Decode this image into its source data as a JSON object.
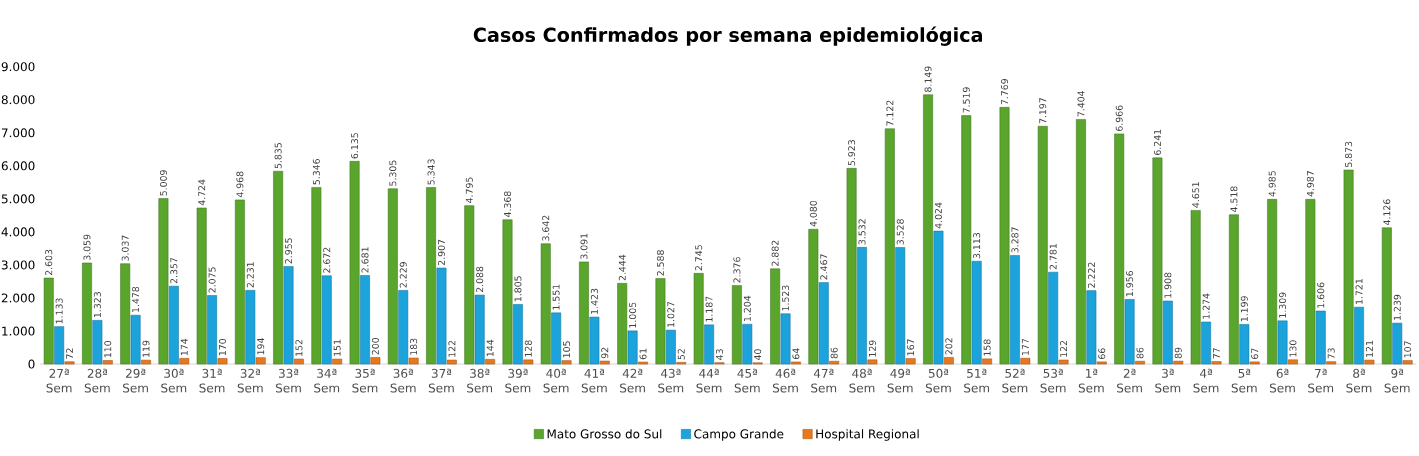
{
  "chart_data": {
    "type": "bar",
    "title": "Casos Confirmados por semana epidemiológica",
    "categories": [
      "27ª Sem",
      "28ª Sem",
      "29ª Sem",
      "30ª Sem",
      "31ª Sem",
      "32ª Sem",
      "33ª Sem",
      "34ª Sem",
      "35ª Sem",
      "36ª Sem",
      "37ª Sem",
      "38ª Sem",
      "39ª Sem",
      "40ª Sem",
      "41ª Sem",
      "42ª Sem",
      "43ª Sem",
      "44ª Sem",
      "45ª Sem",
      "46ª Sem",
      "47ª Sem",
      "48ª Sem",
      "49ª Sem",
      "50ª Sem",
      "51ª Sem",
      "52ª Sem",
      "53ª Sem",
      "1ª Sem",
      "2ª Sem",
      "3ª Sem",
      "4ª Sem",
      "5ª Sem",
      "6ª Sem",
      "7ª Sem",
      "8ª Sem",
      "9ª Sem"
    ],
    "series": [
      {
        "name": "Mato Grosso do Sul",
        "color": "#5aa52c",
        "values": [
          2603,
          3059,
          3037,
          5009,
          4724,
          4968,
          5835,
          5346,
          6135,
          5305,
          5343,
          4795,
          4368,
          3642,
          3091,
          2444,
          2588,
          2745,
          2376,
          2882,
          4080,
          5923,
          7122,
          8149,
          7519,
          7769,
          7197,
          7404,
          6966,
          6241,
          4651,
          4518,
          4985,
          4987,
          5873,
          4126
        ],
        "value_labels": [
          "2.603",
          "3.059",
          "3.037",
          "5.009",
          "4.724",
          "4.968",
          "5.835",
          "5.346",
          "6.135",
          "5.305",
          "5.343",
          "4.795",
          "4.368",
          "3.642",
          "3.091",
          "2.444",
          "2.588",
          "2.745",
          "2.376",
          "2.882",
          "4.080",
          "5.923",
          "7.122",
          "8.149",
          "7.519",
          "7.769",
          "7.197",
          "7.404",
          "6.966",
          "6.241",
          "4.651",
          "4.518",
          "4.985",
          "4.987",
          "5.873",
          "4.126"
        ]
      },
      {
        "name": "Campo Grande",
        "color": "#1ca3dc",
        "values": [
          1133,
          1323,
          1478,
          2357,
          2075,
          2231,
          2955,
          2672,
          2681,
          2229,
          2907,
          2088,
          1805,
          1551,
          1423,
          1005,
          1027,
          1187,
          1204,
          1523,
          2467,
          3532,
          3528,
          4024,
          3113,
          3287,
          2781,
          2222,
          1956,
          1908,
          1274,
          1199,
          1309,
          1606,
          1721,
          1239
        ],
        "value_labels": [
          "1.133",
          "1.323",
          "1.478",
          "2.357",
          "2.075",
          "2.231",
          "2.955",
          "2.672",
          "2.681",
          "2.229",
          "2.907",
          "2.088",
          "1.805",
          "1.551",
          "1.423",
          "1.005",
          "1.027",
          "1.187",
          "1.204",
          "1.523",
          "2.467",
          "3.532",
          "3.528",
          "4.024",
          "3.113",
          "3.287",
          "2.781",
          "2.222",
          "1.956",
          "1.908",
          "1.274",
          "1.199",
          "1.309",
          "1.606",
          "1.721",
          "1.239"
        ]
      },
      {
        "name": "Hospital Regional",
        "color": "#e8781e",
        "values": [
          72,
          110,
          119,
          174,
          170,
          194,
          152,
          151,
          200,
          183,
          122,
          144,
          128,
          105,
          92,
          61,
          52,
          43,
          40,
          64,
          86,
          129,
          167,
          202,
          158,
          177,
          122,
          66,
          86,
          89,
          77,
          67,
          130,
          73,
          121,
          107
        ],
        "value_labels": [
          "72",
          "110",
          "119",
          "174",
          "170",
          "194",
          "152",
          "151",
          "200",
          "183",
          "122",
          "144",
          "128",
          "105",
          "92",
          "61",
          "52",
          "43",
          "40",
          "64",
          "86",
          "129",
          "167",
          "202",
          "158",
          "177",
          "122",
          "66",
          "86",
          "89",
          "77",
          "67",
          "130",
          "73",
          "121",
          "107"
        ]
      }
    ],
    "ylim": [
      0,
      9000
    ],
    "yticks": [
      0,
      {
        "value": 1000,
        "label": "1.000"
      },
      {
        "value": 2000,
        "label": "2.000"
      },
      {
        "value": 3000,
        "label": "3.000"
      },
      {
        "value": 4000,
        "label": "4.000"
      },
      {
        "value": 5000,
        "label": "5.000"
      },
      {
        "value": 6000,
        "label": "6.000"
      },
      {
        "value": 7000,
        "label": "7.000"
      },
      {
        "value": 8000,
        "label": "8.000"
      },
      {
        "value": 9000,
        "label": "9.000"
      }
    ],
    "legend": "bottom"
  }
}
